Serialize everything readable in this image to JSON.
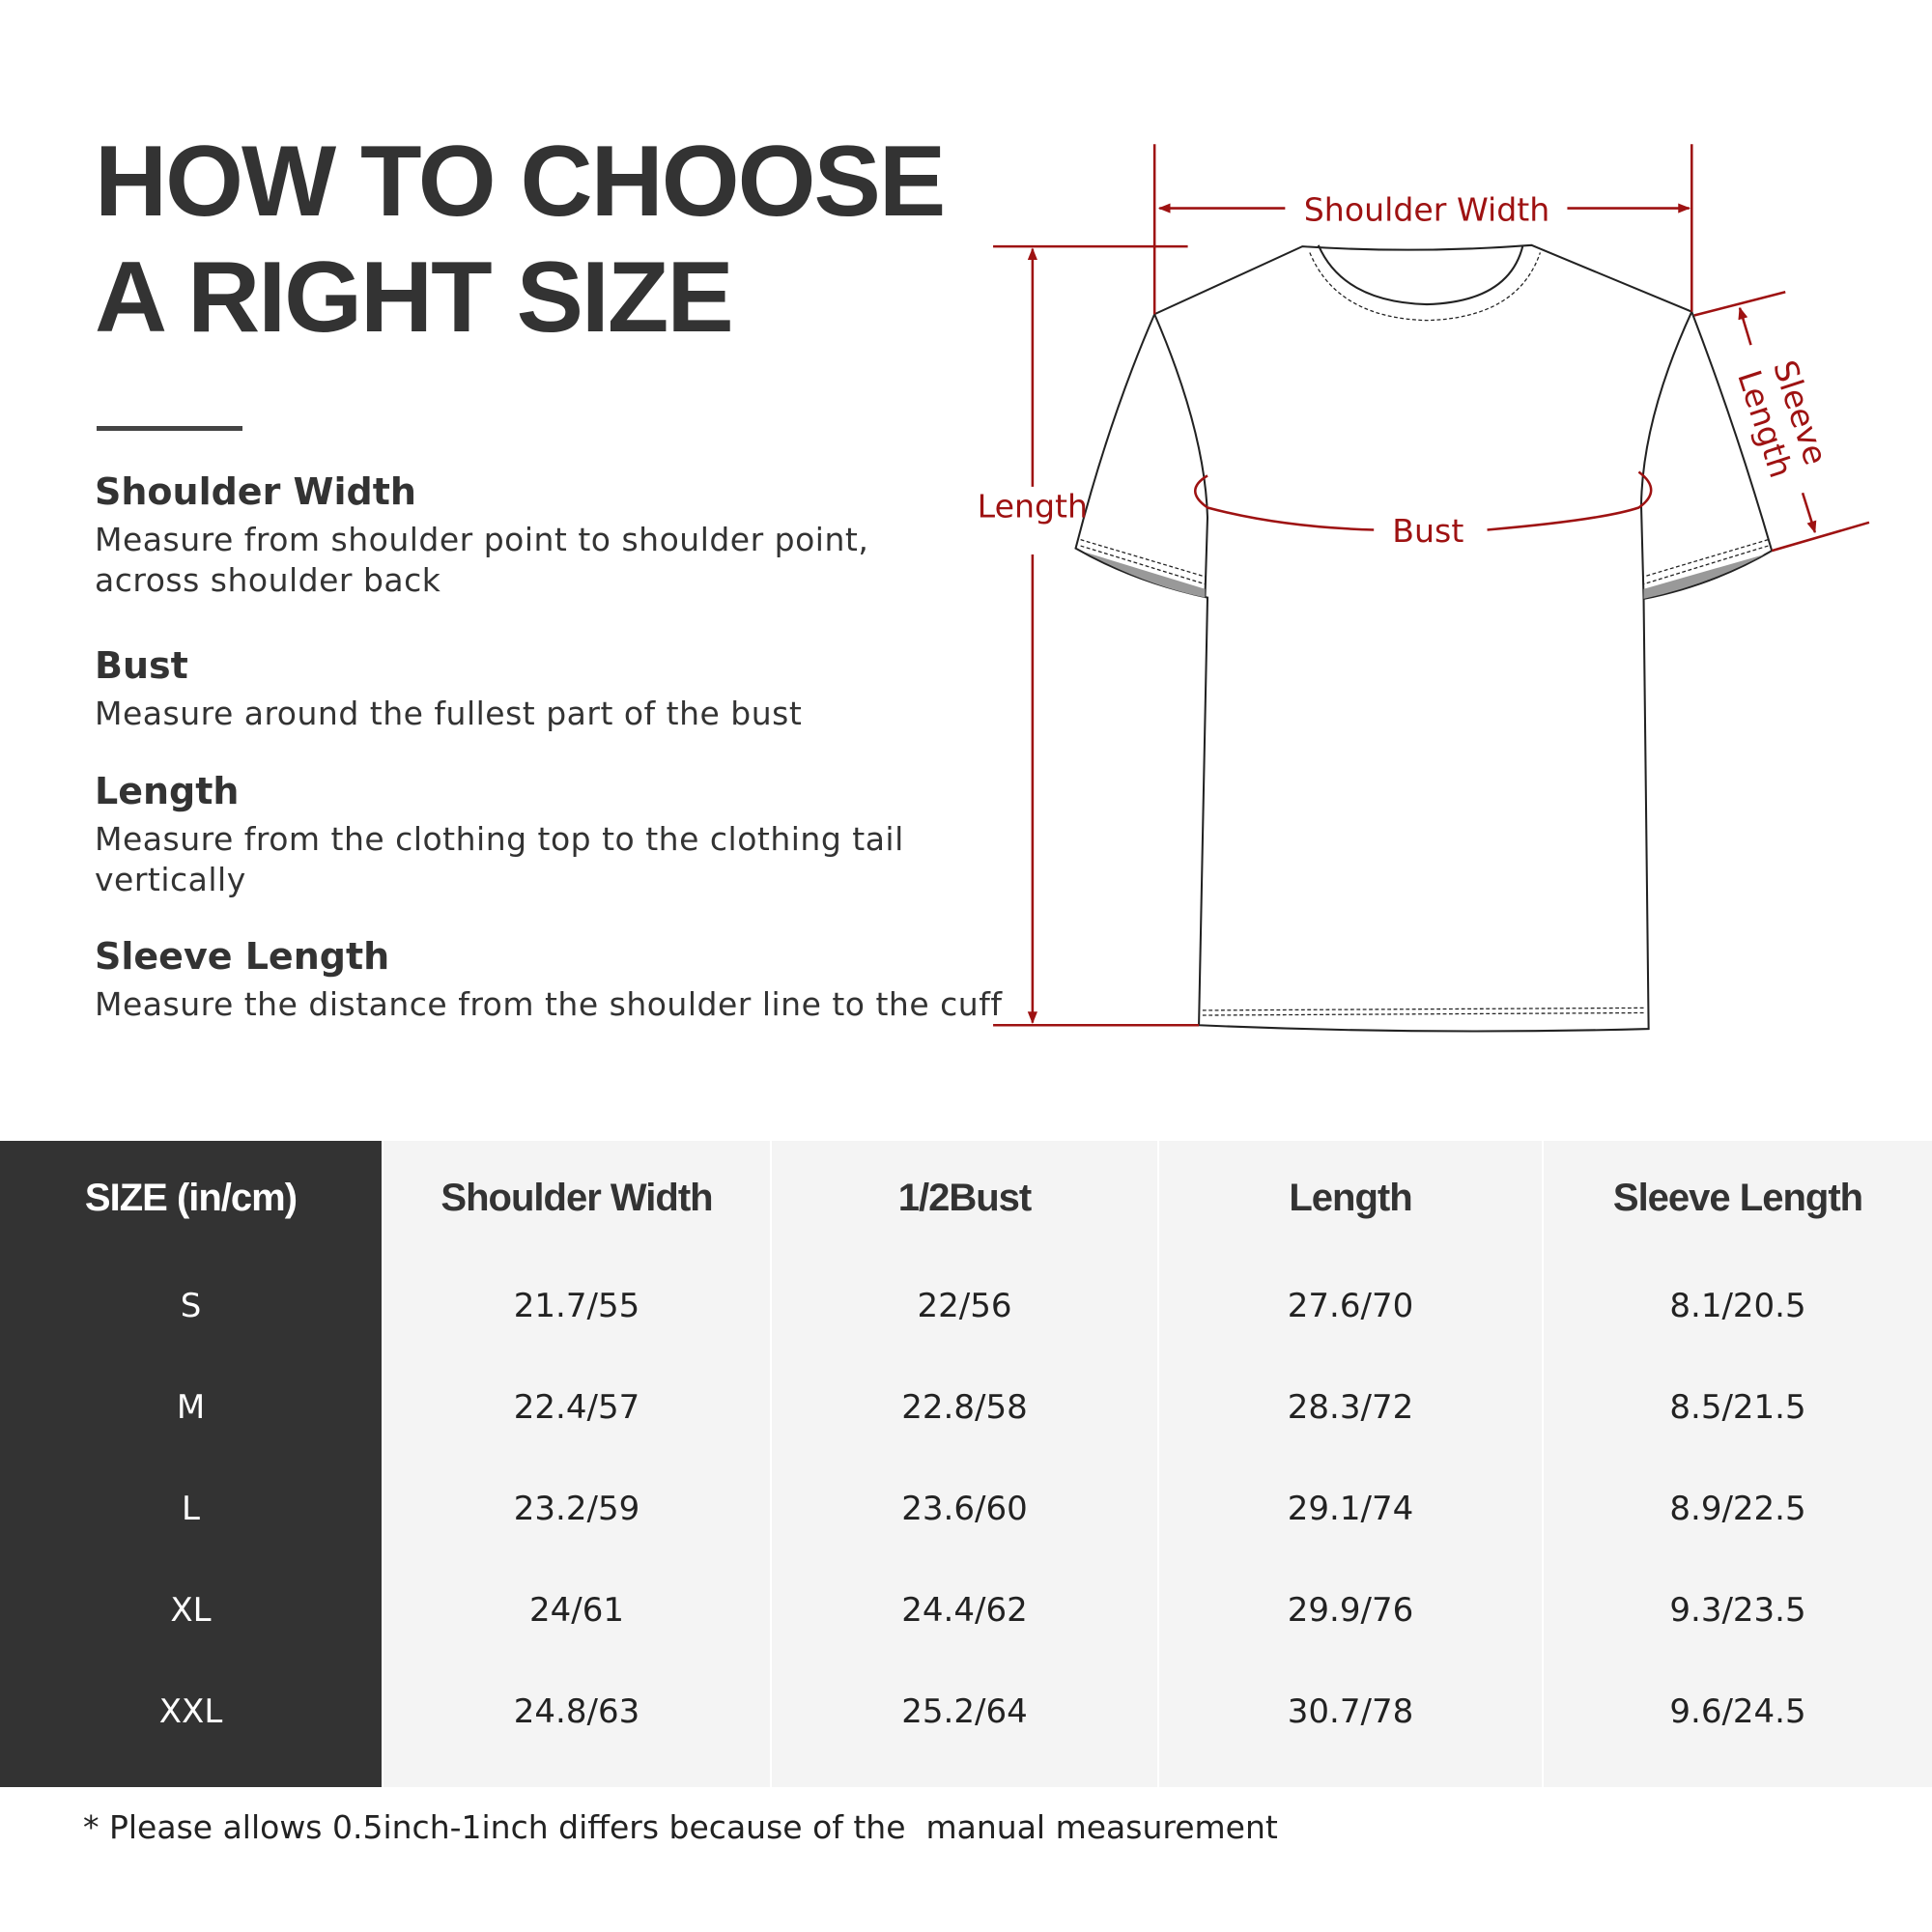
{
  "title": {
    "line1": "HOW TO CHOOSE",
    "line2": "A RIGHT SIZE"
  },
  "guide": [
    {
      "heading": "Shoulder Width",
      "desc": "Measure from shoulder point to shoulder point, across shoulder back"
    },
    {
      "heading": "Bust",
      "desc": "Measure around the fullest part of the bust"
    },
    {
      "heading": "Length",
      "desc": "Measure from the clothing top to the clothing tail vertically"
    },
    {
      "heading": "Sleeve Length",
      "desc": "Measure the distance from the shoulder line to the cuff"
    }
  ],
  "diagram": {
    "shoulder_width": "Shoulder Width",
    "length": "Length",
    "bust": "Bust",
    "sleeve_line1": "Sleeve",
    "sleeve_line2": "Length",
    "accent_color": "#9e1212",
    "icon": "t-shirt-outline"
  },
  "table": {
    "headers": [
      "SIZE  (in/cm)",
      "Shoulder Width",
      "1/2Bust",
      "Length",
      "Sleeve Length"
    ],
    "rows": [
      [
        "S",
        "21.7/55",
        "22/56",
        "27.6/70",
        "8.1/20.5"
      ],
      [
        "M",
        "22.4/57",
        "22.8/58",
        "28.3/72",
        "8.5/21.5"
      ],
      [
        "L",
        "23.2/59",
        "23.6/60",
        "29.1/74",
        "8.9/22.5"
      ],
      [
        "XL",
        "24/61",
        "24.4/62",
        "29.9/76",
        "9.3/23.5"
      ],
      [
        "XXL",
        "24.8/63",
        "25.2/64",
        "30.7/78",
        "9.6/24.5"
      ]
    ]
  },
  "footnote": "* Please allows 0.5inch-1inch differs because of the  manual measurement"
}
